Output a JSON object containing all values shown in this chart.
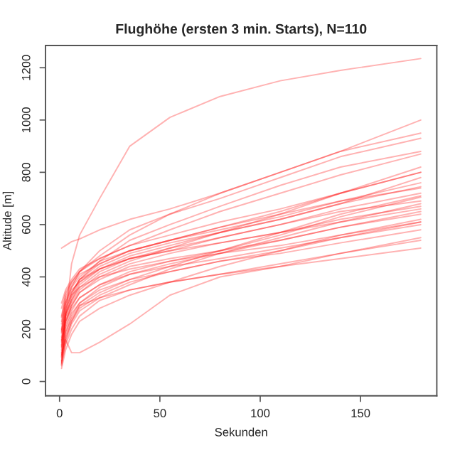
{
  "chart_data": {
    "type": "line",
    "title": "Flughöhe (ersten 3 min. Starts), N=110",
    "xlabel": "Sekunden",
    "ylabel": "Altitude [m]",
    "x": [
      1,
      3,
      6,
      10,
      20,
      35,
      55,
      80,
      110,
      140,
      180
    ],
    "xlim": [
      -7,
      188
    ],
    "xticks": [
      0,
      50,
      100,
      150
    ],
    "ylim": [
      -55,
      1285
    ],
    "yticks": [
      0,
      200,
      400,
      600,
      800,
      1000,
      1200
    ],
    "grid": false,
    "legend": false,
    "marker": "none",
    "line_style": "solid",
    "series": [
      {
        "color": "#ff0000",
        "values": [
          60,
          250,
          450,
          560,
          700,
          900,
          1010,
          1090,
          1150,
          1190,
          1235
        ]
      },
      {
        "color": "#ff0000",
        "values": [
          510,
          520,
          535,
          545,
          580,
          620,
          660,
          720,
          800,
          880,
          1000
        ]
      },
      {
        "color": "#ff0000",
        "values": [
          250,
          330,
          380,
          420,
          480,
          560,
          640,
          720,
          800,
          880,
          950
        ]
      },
      {
        "color": "#ff0000",
        "values": [
          200,
          300,
          360,
          420,
          500,
          580,
          640,
          700,
          780,
          860,
          930
        ]
      },
      {
        "color": "#ff0000",
        "values": [
          150,
          260,
          330,
          390,
          460,
          540,
          600,
          670,
          750,
          820,
          880
        ]
      },
      {
        "color": "#ff0000",
        "values": [
          100,
          160,
          110,
          110,
          150,
          220,
          330,
          400,
          440,
          490,
          550
        ]
      },
      {
        "color": "#ff0000",
        "values": [
          300,
          350,
          390,
          430,
          470,
          520,
          560,
          610,
          660,
          720,
          800
        ]
      },
      {
        "color": "#ff0000",
        "values": [
          120,
          220,
          290,
          340,
          400,
          450,
          490,
          530,
          570,
          620,
          670
        ]
      },
      {
        "color": "#ff0000",
        "values": [
          80,
          180,
          250,
          300,
          360,
          410,
          450,
          490,
          540,
          590,
          650
        ]
      },
      {
        "color": "#ff0000",
        "values": [
          185,
          260,
          310,
          360,
          420,
          470,
          510,
          550,
          600,
          650,
          690
        ]
      },
      {
        "color": "#ff0000",
        "values": [
          65,
          140,
          200,
          250,
          310,
          350,
          380,
          410,
          450,
          490,
          540
        ]
      },
      {
        "color": "#ff0000",
        "values": [
          220,
          300,
          350,
          380,
          430,
          470,
          500,
          550,
          600,
          660,
          720
        ]
      },
      {
        "color": "#ff0000",
        "values": [
          140,
          240,
          300,
          350,
          410,
          460,
          510,
          570,
          640,
          720,
          820
        ]
      },
      {
        "color": "#ff0000",
        "values": [
          95,
          200,
          260,
          300,
          350,
          390,
          420,
          460,
          500,
          550,
          610
        ]
      },
      {
        "color": "#ff0000",
        "values": [
          245,
          320,
          370,
          410,
          450,
          500,
          540,
          590,
          650,
          720,
          800
        ]
      },
      {
        "color": "#ff0000",
        "values": [
          70,
          150,
          220,
          270,
          320,
          370,
          430,
          490,
          550,
          610,
          680
        ]
      },
      {
        "color": "#ff0000",
        "values": [
          160,
          250,
          320,
          380,
          440,
          490,
          530,
          570,
          620,
          680,
          780
        ]
      },
      {
        "color": "#ff0000",
        "values": [
          130,
          210,
          270,
          320,
          370,
          410,
          440,
          470,
          510,
          550,
          600
        ]
      },
      {
        "color": "#ff0000",
        "values": [
          90,
          190,
          240,
          290,
          320,
          350,
          380,
          410,
          440,
          470,
          510
        ]
      },
      {
        "color": "#ff0000",
        "values": [
          195,
          290,
          340,
          390,
          430,
          470,
          500,
          530,
          570,
          610,
          660
        ]
      },
      {
        "color": "#ff0000",
        "values": [
          50,
          120,
          180,
          230,
          280,
          330,
          380,
          440,
          500,
          560,
          620
        ]
      },
      {
        "color": "#ff0000",
        "values": [
          170,
          270,
          340,
          390,
          450,
          500,
          540,
          590,
          640,
          690,
          740
        ]
      },
      {
        "color": "#ff0000",
        "values": [
          110,
          230,
          290,
          340,
          390,
          440,
          470,
          500,
          540,
          590,
          640
        ]
      },
      {
        "color": "#ff0000",
        "values": [
          230,
          310,
          360,
          400,
          460,
          500,
          540,
          580,
          630,
          690,
          760
        ]
      },
      {
        "color": "#ff0000",
        "values": [
          155,
          230,
          280,
          320,
          370,
          420,
          460,
          500,
          560,
          630,
          705
        ]
      },
      {
        "color": "#ff0000",
        "values": [
          105,
          170,
          230,
          290,
          340,
          390,
          440,
          500,
          570,
          640,
          710
        ]
      },
      {
        "color": "#ff0000",
        "values": [
          280,
          340,
          380,
          420,
          470,
          520,
          580,
          650,
          720,
          790,
          870
        ]
      },
      {
        "color": "#ff0000",
        "values": [
          190,
          280,
          330,
          360,
          400,
          430,
          460,
          490,
          520,
          560,
          610
        ]
      },
      {
        "color": "#ff0000",
        "values": [
          75,
          160,
          230,
          280,
          330,
          380,
          420,
          460,
          490,
          530,
          580
        ]
      },
      {
        "color": "#ff0000",
        "values": [
          135,
          250,
          310,
          370,
          430,
          480,
          520,
          570,
          620,
          680,
          745
        ]
      }
    ]
  }
}
